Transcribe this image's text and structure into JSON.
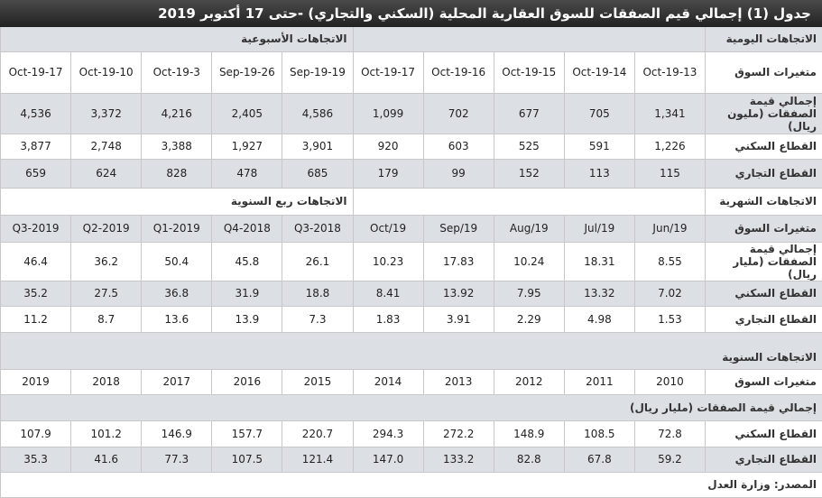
{
  "title": "جدول (1) إجمالي قيم الصفقات للسوق العقارية المحلية (السكني والتجاري) -حتى 17 أكتوبر 2019",
  "blocks": [
    {
      "section": {
        "right": "الاتجاهات اليومية",
        "left": "الاتجاهات الأسبوعية"
      },
      "header": {
        "label": "متغيرات السوق",
        "columns": [
          "13-Oct-19",
          "14-Oct-19",
          "15-Oct-19",
          "16-Oct-19",
          "17-Oct-19",
          "19-Sep-19",
          "26-Sep-19",
          "3-Oct-19",
          "10-Oct-19",
          "17-Oct-19"
        ]
      },
      "rows": [
        {
          "label": "إجمالي قيمة الصفقات (مليون ريال)",
          "values": [
            "1,341",
            "705",
            "677",
            "702",
            "1,099",
            "4,586",
            "2,405",
            "4,216",
            "3,372",
            "4,536"
          ]
        },
        {
          "label": "القطاع السكني",
          "values": [
            "1,226",
            "591",
            "525",
            "603",
            "920",
            "3,901",
            "1,927",
            "3,388",
            "2,748",
            "3,877"
          ]
        },
        {
          "label": "القطاع التجاري",
          "values": [
            "115",
            "113",
            "152",
            "99",
            "179",
            "685",
            "478",
            "828",
            "624",
            "659"
          ]
        }
      ]
    },
    {
      "section": {
        "right": "الاتجاهات الشهرية",
        "left": "الاتجاهات ربع السنوية"
      },
      "header": {
        "label": "متغيرات السوق",
        "columns": [
          "Jun/19",
          "Jul/19",
          "Aug/19",
          "Sep/19",
          "Oct/19",
          "2018-Q3",
          "2018-Q4",
          "2019-Q1",
          "2019-Q2",
          "2019-Q3"
        ]
      },
      "rows": [
        {
          "label": "إجمالي قيمة الصفقات (مليار ريال)",
          "values": [
            "8.55",
            "18.31",
            "10.24",
            "17.83",
            "10.23",
            "26.1",
            "45.8",
            "50.4",
            "36.2",
            "46.4"
          ]
        },
        {
          "label": "القطاع السكني",
          "values": [
            "7.02",
            "13.32",
            "7.95",
            "13.92",
            "8.41",
            "18.8",
            "31.9",
            "36.8",
            "27.5",
            "35.2"
          ]
        },
        {
          "label": "القطاع التجاري",
          "values": [
            "1.53",
            "4.98",
            "2.29",
            "3.91",
            "1.83",
            "7.3",
            "13.9",
            "13.6",
            "8.7",
            "11.2"
          ]
        }
      ]
    },
    {
      "section": {
        "right": "الاتجاهات السنوية"
      },
      "header": {
        "label": "متغيرات السوق",
        "columns": [
          "2010",
          "2011",
          "2012",
          "2013",
          "2014",
          "2015",
          "2016",
          "2017",
          "2018",
          "2019"
        ]
      },
      "subheading": "إجمالي قيمة الصفقات (مليار ريال)",
      "rows": [
        {
          "label": "القطاع السكني",
          "values": [
            "72.8",
            "108.5",
            "148.9",
            "272.2",
            "294.3",
            "220.7",
            "157.7",
            "146.9",
            "101.2",
            "107.9"
          ]
        },
        {
          "label": "القطاع التجاري",
          "values": [
            "59.2",
            "67.8",
            "82.8",
            "133.2",
            "147.0",
            "121.4",
            "107.5",
            "77.3",
            "41.6",
            "35.3"
          ]
        }
      ]
    }
  ],
  "source": "المصدر: وزارة العدل"
}
